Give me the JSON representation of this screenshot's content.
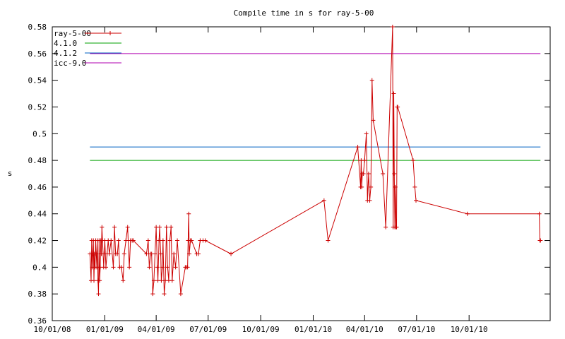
{
  "chart_data": {
    "type": "line",
    "title": "Compile time in s for ray-5-00",
    "xlabel": "",
    "ylabel": "s",
    "xlim": [
      "2008-10-01",
      "2011-02-20"
    ],
    "ylim": [
      0.36,
      0.58
    ],
    "x_ticks": [
      "10/01/08",
      "01/01/09",
      "04/01/09",
      "07/01/09",
      "10/01/09",
      "01/01/10",
      "04/01/10",
      "07/01/10",
      "10/01/10"
    ],
    "y_ticks": [
      "0.36",
      "0.38",
      "0.4",
      "0.42",
      "0.44",
      "0.46",
      "0.48",
      "0.5",
      "0.52",
      "0.54",
      "0.56",
      "0.58"
    ],
    "grid": false,
    "legend_position": "top-left",
    "series": [
      {
        "name": "ray-5-00",
        "color": "#cc0000",
        "marker": "plus",
        "x": [
          "2008-12-06",
          "2008-12-08",
          "2008-12-09",
          "2008-12-10",
          "2008-12-11",
          "2008-12-12",
          "2008-12-13",
          "2008-12-14",
          "2008-12-15",
          "2008-12-16",
          "2008-12-17",
          "2008-12-18",
          "2008-12-19",
          "2008-12-20",
          "2008-12-21",
          "2008-12-22",
          "2008-12-23",
          "2008-12-24",
          "2008-12-25",
          "2008-12-26",
          "2008-12-27",
          "2008-12-28",
          "2008-12-29",
          "2008-12-30",
          "2008-12-31",
          "2009-01-01",
          "2009-01-03",
          "2009-01-05",
          "2009-01-07",
          "2009-01-09",
          "2009-01-12",
          "2009-01-16",
          "2009-01-18",
          "2009-01-20",
          "2009-01-23",
          "2009-01-25",
          "2009-01-27",
          "2009-01-30",
          "2009-02-02",
          "2009-02-04",
          "2009-02-07",
          "2009-02-10",
          "2009-02-13",
          "2009-02-15",
          "2009-02-18",
          "2009-02-20",
          "2009-03-15",
          "2009-03-18",
          "2009-03-20",
          "2009-03-22",
          "2009-03-24",
          "2009-03-26",
          "2009-03-28",
          "2009-03-30",
          "2009-04-01",
          "2009-04-03",
          "2009-04-04",
          "2009-04-06",
          "2009-04-07",
          "2009-04-09",
          "2009-04-10",
          "2009-04-12",
          "2009-04-13",
          "2009-04-15",
          "2009-04-17",
          "2009-04-19",
          "2009-04-21",
          "2009-04-23",
          "2009-04-25",
          "2009-04-27",
          "2009-04-29",
          "2009-05-02",
          "2009-05-05",
          "2009-05-08",
          "2009-05-14",
          "2009-05-22",
          "2009-05-24",
          "2009-05-26",
          "2009-05-27",
          "2009-05-28",
          "2009-05-29",
          "2009-05-31",
          "2009-06-02",
          "2009-06-11",
          "2009-06-14",
          "2009-06-17",
          "2009-06-22",
          "2009-06-26",
          "2009-08-10",
          "2010-01-20",
          "2010-01-27",
          "2010-03-20",
          "2010-03-25",
          "2010-03-26",
          "2010-03-27",
          "2010-03-28",
          "2010-03-30",
          "2010-04-01",
          "2010-04-04",
          "2010-04-06",
          "2010-04-08",
          "2010-04-10",
          "2010-04-12",
          "2010-04-14",
          "2010-04-16",
          "2010-05-03",
          "2010-05-08",
          "2010-05-20",
          "2010-05-21",
          "2010-05-22",
          "2010-05-23",
          "2010-05-24",
          "2010-05-25",
          "2010-05-26",
          "2010-05-27",
          "2010-05-28",
          "2010-05-29",
          "2010-06-25",
          "2010-06-28",
          "2010-06-30",
          "2010-09-28",
          "2011-02-01",
          "2011-02-02",
          "2011-02-03"
        ],
        "y": [
          0.41,
          0.39,
          0.42,
          0.4,
          0.41,
          0.42,
          0.39,
          0.41,
          0.4,
          0.42,
          0.41,
          0.4,
          0.42,
          0.39,
          0.38,
          0.42,
          0.39,
          0.4,
          0.42,
          0.41,
          0.43,
          0.42,
          0.41,
          0.4,
          0.41,
          0.42,
          0.4,
          0.41,
          0.42,
          0.41,
          0.42,
          0.4,
          0.43,
          0.41,
          0.41,
          0.42,
          0.4,
          0.4,
          0.39,
          0.41,
          0.42,
          0.43,
          0.4,
          0.42,
          0.42,
          0.42,
          0.41,
          0.42,
          0.4,
          0.41,
          0.41,
          0.38,
          0.39,
          0.41,
          0.43,
          0.4,
          0.39,
          0.42,
          0.43,
          0.41,
          0.39,
          0.4,
          0.42,
          0.38,
          0.39,
          0.43,
          0.4,
          0.39,
          0.42,
          0.43,
          0.39,
          0.41,
          0.4,
          0.42,
          0.38,
          0.4,
          0.4,
          0.4,
          0.42,
          0.44,
          0.41,
          0.42,
          0.42,
          0.41,
          0.41,
          0.42,
          0.42,
          0.42,
          0.41,
          0.45,
          0.42,
          0.49,
          0.46,
          0.48,
          0.46,
          0.47,
          0.47,
          0.48,
          0.5,
          0.45,
          0.47,
          0.45,
          0.46,
          0.54,
          0.51,
          0.47,
          0.43,
          0.58,
          0.43,
          0.53,
          0.47,
          0.43,
          0.46,
          0.43,
          0.43,
          0.52,
          0.52,
          0.48,
          0.46,
          0.45,
          0.44,
          0.44,
          0.42,
          0.42
        ]
      },
      {
        "name": "4.1.0",
        "color": "#00a000",
        "value": 0.48
      },
      {
        "name": "4.1.2",
        "color": "#0060c0",
        "value": 0.49
      },
      {
        "name": "icc-9.0",
        "color": "#b000b0",
        "value": 0.56
      }
    ]
  }
}
